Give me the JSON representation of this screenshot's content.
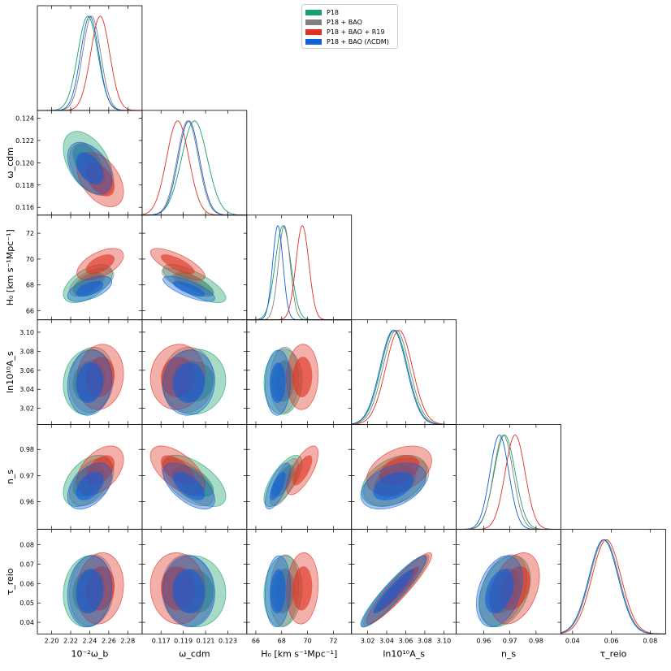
{
  "chart_data": {
    "type": "triangle-posterior",
    "parameters": [
      {
        "name": "omega_b_x100",
        "label": "10⁻²ω_b",
        "label_main": "10",
        "label_sup": "−2",
        "label_sym": "ω",
        "label_sub": "b",
        "range": [
          2.185,
          2.295
        ],
        "ticks": [
          2.2,
          2.22,
          2.24,
          2.26,
          2.28
        ],
        "tick_labels": [
          "2.20",
          "2.22",
          "2.24",
          "2.26",
          "2.28"
        ]
      },
      {
        "name": "omega_cdm",
        "label": "ω_cdm",
        "label_sym": "ω",
        "label_sub": "cdm",
        "range": [
          0.1153,
          0.1247
        ],
        "ticks": [
          0.116,
          0.118,
          0.12,
          0.122,
          0.124
        ],
        "tick_labels": [
          "0.116",
          "0.118",
          "0.120",
          "0.122",
          "0.124"
        ],
        "x_ticks": [
          0.117,
          0.119,
          0.121,
          0.123
        ],
        "x_tick_labels": [
          "0.117",
          "0.119",
          "0.121",
          "0.123"
        ]
      },
      {
        "name": "H0",
        "label": "H₀ [km s⁻¹Mpc⁻¹]",
        "range": [
          65.3,
          73.4
        ],
        "ticks": [
          66,
          68,
          70,
          72
        ],
        "tick_labels": [
          "66",
          "68",
          "70",
          "72"
        ]
      },
      {
        "name": "ln10A_s",
        "label": "ln10¹⁰A_s",
        "range": [
          3.003,
          3.113
        ],
        "ticks": [
          3.02,
          3.04,
          3.06,
          3.08,
          3.1
        ],
        "tick_labels": [
          "3.02",
          "3.04",
          "3.06",
          "3.08",
          "3.10"
        ]
      },
      {
        "name": "n_s",
        "label": "n_s",
        "range": [
          0.9495,
          0.9895
        ],
        "ticks": [
          0.96,
          0.97,
          0.98
        ],
        "tick_labels": [
          "0.96",
          "0.97",
          "0.98"
        ]
      },
      {
        "name": "tau_reio",
        "label": "τ_reio",
        "range": [
          0.034,
          0.088
        ],
        "ticks": [
          0.04,
          0.05,
          0.06,
          0.07,
          0.08
        ],
        "tick_labels": [
          "0.04",
          "0.05",
          "0.06",
          "0.07",
          "0.08"
        ],
        "x_ticks": [
          0.04,
          0.06,
          0.08
        ],
        "x_tick_labels": [
          "0.04",
          "0.06",
          "0.08"
        ]
      }
    ],
    "series": [
      {
        "name": "P18",
        "color": "#18a06a",
        "mean": [
          2.238,
          0.12,
          68.1,
          3.048,
          0.968,
          0.056
        ],
        "sigma": [
          0.0105,
          0.00115,
          0.6,
          0.014,
          0.004,
          0.0075
        ]
      },
      {
        "name": "P18 + BAO",
        "color": "#808080",
        "mean": [
          2.242,
          0.1194,
          68.2,
          3.05,
          0.9675,
          0.0565
        ],
        "sigma": [
          0.0095,
          0.00095,
          0.45,
          0.014,
          0.0037,
          0.0075
        ]
      },
      {
        "name": "P18 + BAO + R19",
        "color": "#e03020",
        "mean": [
          2.251,
          0.1185,
          69.6,
          3.053,
          0.972,
          0.0575
        ],
        "sigma": [
          0.01,
          0.001,
          0.5,
          0.014,
          0.0038,
          0.0075
        ]
      },
      {
        "name": "P18 + BAO (ΛCDM)",
        "color": "#1060d8",
        "mean": [
          2.24,
          0.1195,
          67.7,
          3.047,
          0.966,
          0.056
        ],
        "sigma": [
          0.0095,
          0.00095,
          0.4,
          0.014,
          0.0036,
          0.0075
        ]
      }
    ],
    "correlations": [
      [
        1,
        -0.45,
        0.55,
        0.1,
        0.45,
        0.1
      ],
      [
        -0.45,
        1,
        -0.75,
        0.05,
        -0.6,
        -0.05
      ],
      [
        0.55,
        -0.75,
        1,
        0.05,
        0.7,
        0.1
      ],
      [
        0.1,
        0.05,
        0.05,
        1,
        0.4,
        0.93
      ],
      [
        0.45,
        -0.6,
        0.7,
        0.4,
        1,
        0.35
      ],
      [
        0.1,
        -0.05,
        0.1,
        0.93,
        0.35,
        1
      ]
    ],
    "contour_levels": [
      "68%",
      "95%"
    ],
    "legend_position": "top-right"
  },
  "legend": {
    "items": [
      {
        "label": "P18",
        "color": "#18a06a"
      },
      {
        "label": "P18 + BAO",
        "color": "#808080"
      },
      {
        "label": "P18 + BAO + R19",
        "color": "#e03020"
      },
      {
        "label": "P18 + BAO (ΛCDM)",
        "color": "#1060d8"
      }
    ]
  }
}
